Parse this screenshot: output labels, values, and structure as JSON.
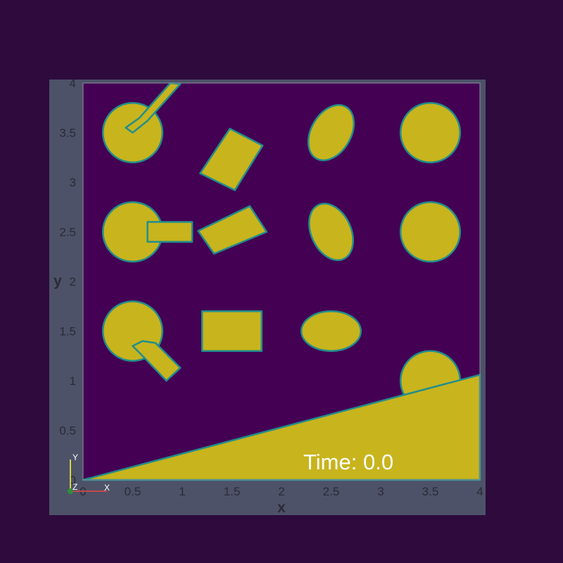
{
  "colors": {
    "background": "#2e0a3d",
    "frame": "#4d5268",
    "field_low": "#440154",
    "field_high": "#c8b41d",
    "interface": "#218e8c",
    "text": "#2b2b36",
    "time_text": "#ffffff"
  },
  "annotations": {
    "time_label": "Time: 0.0"
  },
  "orientation_triad": {
    "x_label": "X",
    "y_label": "Y",
    "z_label": "Z"
  },
  "chart_data": {
    "type": "heatmap",
    "title": "",
    "xlabel": "x",
    "ylabel": "y",
    "xlim": [
      0,
      4
    ],
    "ylim": [
      0,
      4
    ],
    "grid": false,
    "xticks": [
      0,
      0.5,
      1,
      1.5,
      2,
      2.5,
      3,
      3.5,
      4
    ],
    "yticks": [
      0,
      0.5,
      1,
      1.5,
      2,
      2.5,
      3,
      3.5,
      4
    ],
    "xtick_labels": [
      "0",
      "0.5",
      "1",
      "1.5",
      "2",
      "2.5",
      "3",
      "3.5",
      "4"
    ],
    "ytick_labels": [
      "0",
      "0.5",
      "1",
      "1.5",
      "2",
      "2.5",
      "3",
      "3.5",
      "4"
    ],
    "field": "phase indicator (0 = dark, 1 = yellow)",
    "shapes": [
      {
        "name": "circle-with-diagonal-handle-up",
        "kind": "circle",
        "cx": 0.5,
        "cy": 3.5,
        "r": 0.3
      },
      {
        "name": "diagonal-handle-up",
        "kind": "polygon",
        "points": [
          [
            0.5,
            3.5
          ],
          [
            0.65,
            3.62
          ],
          [
            0.98,
            3.99
          ],
          [
            0.88,
            4.0
          ],
          [
            0.57,
            3.65
          ],
          [
            0.43,
            3.55
          ]
        ]
      },
      {
        "name": "circle-with-horizontal-handle",
        "kind": "circle",
        "cx": 0.5,
        "cy": 2.5,
        "r": 0.3
      },
      {
        "name": "horizontal-handle",
        "kind": "polygon",
        "points": [
          [
            0.65,
            2.6
          ],
          [
            1.1,
            2.6
          ],
          [
            1.1,
            2.4
          ],
          [
            0.65,
            2.4
          ]
        ]
      },
      {
        "name": "circle-with-diagonal-handle-down",
        "kind": "circle",
        "cx": 0.5,
        "cy": 1.5,
        "r": 0.3
      },
      {
        "name": "diagonal-handle-down",
        "kind": "polygon",
        "points": [
          [
            0.6,
            1.4
          ],
          [
            0.73,
            1.38
          ],
          [
            0.98,
            1.13
          ],
          [
            0.84,
            1.0
          ],
          [
            0.6,
            1.25
          ],
          [
            0.5,
            1.35
          ]
        ]
      },
      {
        "name": "tilted-rectangle-top",
        "kind": "polygon",
        "points": [
          [
            1.48,
            3.54
          ],
          [
            1.81,
            3.37
          ],
          [
            1.53,
            2.92
          ],
          [
            1.18,
            3.09
          ]
        ]
      },
      {
        "name": "tilted-rectangle-middle",
        "kind": "polygon",
        "points": [
          [
            1.16,
            2.51
          ],
          [
            1.32,
            2.28
          ],
          [
            1.85,
            2.5
          ],
          [
            1.68,
            2.76
          ]
        ]
      },
      {
        "name": "axis-aligned-rectangle",
        "kind": "polygon",
        "points": [
          [
            1.2,
            1.7
          ],
          [
            1.8,
            1.7
          ],
          [
            1.8,
            1.3
          ],
          [
            1.2,
            1.3
          ]
        ]
      },
      {
        "name": "tilted-ellipse-top",
        "kind": "ellipse",
        "cx": 2.5,
        "cy": 3.5,
        "rx": 0.3,
        "ry": 0.2,
        "angle_deg": 60
      },
      {
        "name": "tilted-ellipse-middle",
        "kind": "ellipse",
        "cx": 2.5,
        "cy": 2.5,
        "rx": 0.3,
        "ry": 0.2,
        "angle_deg": 115
      },
      {
        "name": "horizontal-ellipse",
        "kind": "ellipse",
        "cx": 2.5,
        "cy": 1.5,
        "rx": 0.3,
        "ry": 0.2,
        "angle_deg": 0
      },
      {
        "name": "circle-top-right",
        "kind": "circle",
        "cx": 3.5,
        "cy": 3.5,
        "r": 0.3
      },
      {
        "name": "circle-middle-right",
        "kind": "circle",
        "cx": 3.5,
        "cy": 2.5,
        "r": 0.3
      },
      {
        "name": "circle-on-ramp",
        "kind": "circle",
        "cx": 3.5,
        "cy": 1.0,
        "r": 0.3
      },
      {
        "name": "sloped-ramp",
        "kind": "polygon",
        "points": [
          [
            0.0,
            0.0
          ],
          [
            4.0,
            1.06
          ],
          [
            4.0,
            0.0
          ]
        ]
      }
    ]
  }
}
